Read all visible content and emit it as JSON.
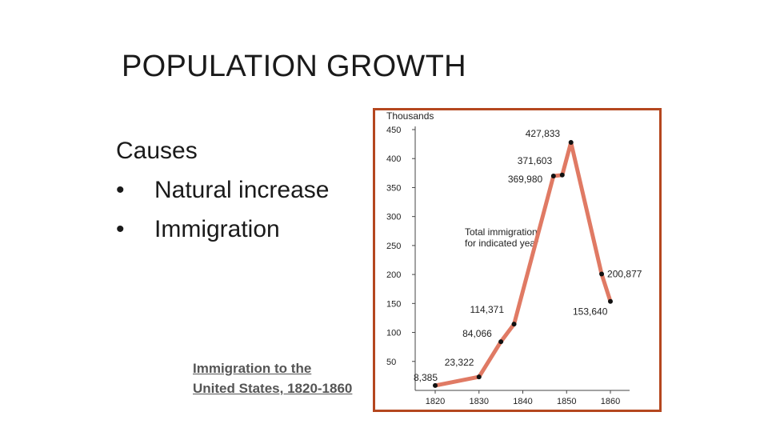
{
  "slide": {
    "title": "POPULATION GROWTH",
    "causes_heading": "Causes",
    "bullets": [
      "Natural increase",
      "Immigration"
    ],
    "bullet_symbol": "•",
    "caption_line1": "Immigration to the",
    "caption_line2": "United States, 1820-1860"
  },
  "colors": {
    "line": "#e07a64",
    "frame": "#b5471f",
    "point": "#111111",
    "axis": "#444444"
  },
  "chart_data": {
    "type": "line",
    "ylabel": "Thousands",
    "annotation": [
      "Total immigration",
      "for indicated year"
    ],
    "ylim": [
      0,
      450
    ],
    "yticks": [
      50,
      100,
      150,
      200,
      250,
      300,
      350,
      400,
      450
    ],
    "xlim": [
      1820,
      1860
    ],
    "xticks": [
      1820,
      1830,
      1840,
      1850,
      1860
    ],
    "grid": false,
    "series": [
      {
        "points": [
          {
            "x": 1820,
            "y": 8.385,
            "label": "8,385"
          },
          {
            "x": 1830,
            "y": 23.322,
            "label": "23,322"
          },
          {
            "x": 1835,
            "y": 84.066,
            "label": "84,066"
          },
          {
            "x": 1838,
            "y": 114.371,
            "label": "114,371"
          },
          {
            "x": 1847,
            "y": 369.98,
            "label": "369,980"
          },
          {
            "x": 1849,
            "y": 371.603,
            "label": "371,603"
          },
          {
            "x": 1851,
            "y": 427.833,
            "label": "427,833"
          },
          {
            "x": 1858,
            "y": 200.877,
            "label": "200,877"
          },
          {
            "x": 1860,
            "y": 153.64,
            "label": "153,640"
          }
        ]
      }
    ]
  }
}
